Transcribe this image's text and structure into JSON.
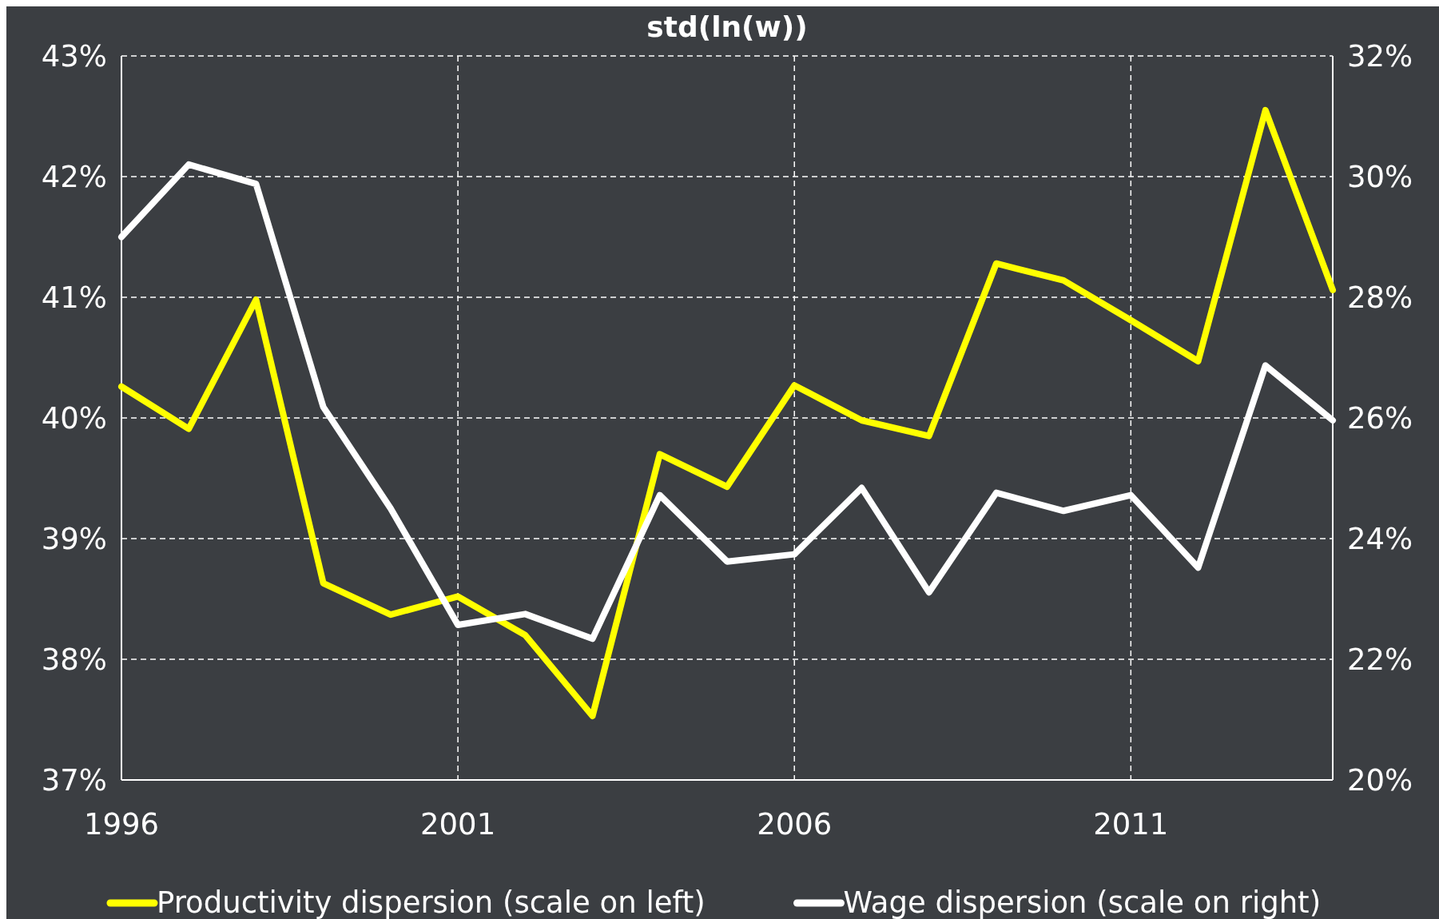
{
  "chart_data": {
    "type": "line",
    "title": "std(ln(w))",
    "x": [
      1996,
      1997,
      1998,
      1999,
      2000,
      2001,
      2002,
      2003,
      2004,
      2005,
      2006,
      2007,
      2008,
      2009,
      2010,
      2011,
      2012,
      2013,
      2014
    ],
    "series": [
      {
        "name": "Productivity dispersion (scale on left)",
        "color": "#ffff00",
        "values": [
          40.26,
          39.91,
          40.98,
          38.63,
          38.37,
          38.52,
          38.2,
          37.53,
          39.7,
          39.43,
          40.27,
          39.98,
          39.85,
          41.28,
          41.14,
          40.81,
          40.47,
          42.55,
          41.06
        ]
      },
      {
        "name": "Wage dispersion (scale on right)",
        "color": "#ffffff",
        "axis": "y2",
        "values": [
          29.0,
          30.2,
          29.88,
          26.18,
          24.5,
          22.57,
          22.75,
          22.34,
          24.72,
          23.62,
          23.74,
          24.84,
          23.11,
          24.76,
          24.46,
          24.72,
          23.52,
          26.87,
          25.96
        ]
      }
    ],
    "xlim": [
      1996,
      2014
    ],
    "xticks": [
      1996,
      2001,
      2006,
      2011
    ],
    "ylim": [
      37,
      43
    ],
    "yticks": [
      {
        "value": 37,
        "label": "37%"
      },
      {
        "value": 38,
        "label": "38%"
      },
      {
        "value": 39,
        "label": "39%"
      },
      {
        "value": 40,
        "label": "40%"
      },
      {
        "value": 41,
        "label": "41%"
      },
      {
        "value": 42,
        "label": "42%"
      },
      {
        "value": 43,
        "label": "43%"
      }
    ],
    "y2lim": [
      20,
      32
    ],
    "y2ticks": [
      {
        "value": 20,
        "label": "20%"
      },
      {
        "value": 22,
        "label": "22%"
      },
      {
        "value": 24,
        "label": "24%"
      },
      {
        "value": 26,
        "label": "26%"
      },
      {
        "value": 28,
        "label": "28%"
      },
      {
        "value": 30,
        "label": "30%"
      },
      {
        "value": 32,
        "label": "32%"
      }
    ],
    "grid": true,
    "legend": "bottom",
    "marker": "none",
    "line_style": "solid"
  }
}
